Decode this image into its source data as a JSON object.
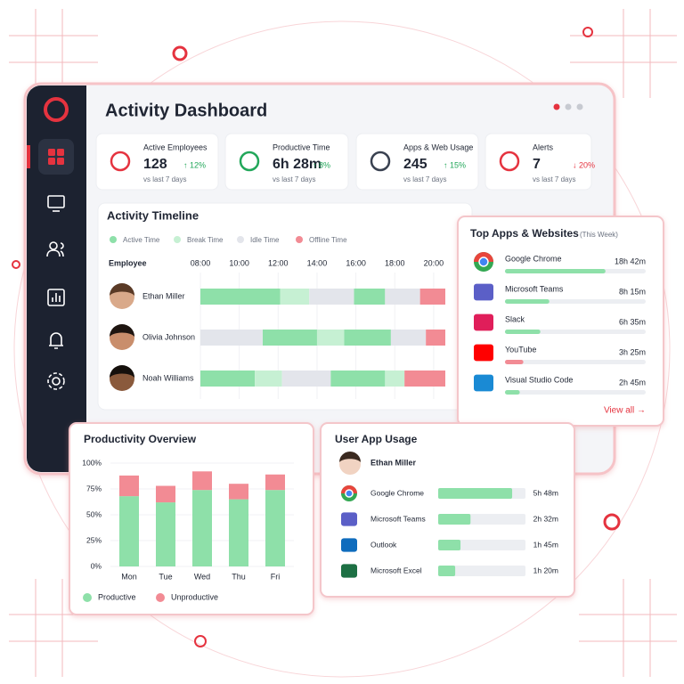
{
  "header": {
    "title": "Activity Dashboard"
  },
  "kpis": [
    {
      "label": "Active Employees",
      "value": "128",
      "change": "↑ 12%",
      "note": "vs last 7 days"
    },
    {
      "label": "Productive Time",
      "value": "6h 28m",
      "change": "↑ 8%",
      "note": "vs last 7 days"
    },
    {
      "label": "Apps & Web Usage",
      "value": "245",
      "change": "↑ 15%",
      "note": "vs last 7 days"
    },
    {
      "label": "Alerts",
      "value": "7",
      "change": "↓ 20%",
      "note": "vs last 7 days"
    }
  ],
  "timeline": {
    "title": "Activity Timeline",
    "column_label": "Employee",
    "xlim": [
      8,
      20.6
    ],
    "xticks": [
      {
        "value": 8,
        "label": "08:00"
      },
      {
        "value": 10,
        "label": "10:00"
      },
      {
        "value": 12,
        "label": "12:00"
      },
      {
        "value": 14,
        "label": "14:00"
      },
      {
        "value": 16,
        "label": "16:00"
      },
      {
        "value": 18,
        "label": "18:00"
      },
      {
        "value": 20,
        "label": "20:00"
      }
    ],
    "employees": [
      "Ethan Miller",
      "Olivia Johnson",
      "Noah Williams"
    ],
    "legend": [
      {
        "name": "Active Time",
        "color": "#8ee0a9",
        "spans": [
          [
            [
              8,
              12.1
            ],
            [
              15.9,
              17.5
            ]
          ],
          [
            [
              11.2,
              14
            ],
            [
              15.4,
              17.8
            ]
          ],
          [
            [
              8,
              10.8
            ],
            [
              14.7,
              17.5
            ]
          ]
        ]
      },
      {
        "name": "Break Time",
        "color": "#c6f0d3",
        "spans": [
          [
            [
              12.1,
              13.6
            ]
          ],
          [
            [
              14,
              15.4
            ]
          ],
          [
            [
              10.8,
              12.2
            ],
            [
              17.5,
              18.5
            ]
          ]
        ]
      },
      {
        "name": "Idle Time",
        "color": "#e3e5eb",
        "spans": [
          [
            [
              13.6,
              15.9
            ],
            [
              17.5,
              19.3
            ]
          ],
          [
            [
              8,
              11.2
            ],
            [
              17.8,
              19.6
            ]
          ],
          [
            [
              12.2,
              14.7
            ]
          ]
        ]
      },
      {
        "name": "Offline Time",
        "color": "#f28b94",
        "spans": [
          [
            [
              19.3,
              20.6
            ]
          ],
          [
            [
              19.6,
              20.6
            ]
          ],
          [
            [
              18.5,
              20.6
            ]
          ]
        ]
      }
    ]
  },
  "top_apps": {
    "title": "Top Apps & Websites",
    "period": "(This Week)",
    "link": "View all →",
    "apps": [
      {
        "name": "Google Chrome",
        "time": {
          "value": 1122,
          "label": "18h 42m"
        }
      },
      {
        "name": "Microsoft Teams",
        "time": {
          "value": 495,
          "label": "8h 15m"
        }
      },
      {
        "name": "Slack",
        "time": {
          "value": 395,
          "label": "6h 35m"
        }
      },
      {
        "name": "YouTube",
        "time": {
          "value": 205,
          "label": "3h 25m"
        }
      },
      {
        "name": "Visual Studio Code",
        "time": {
          "value": 165,
          "label": "2h 45m"
        }
      }
    ]
  },
  "chart_data": {
    "type": "bar",
    "stacked": true,
    "title": "Productivity Overview",
    "categories": [
      "Mon",
      "Tue",
      "Wed",
      "Thu",
      "Fri"
    ],
    "series": [
      {
        "name": "Productive",
        "color": "#8ee0a9",
        "values": [
          68,
          62,
          74,
          65,
          74
        ]
      },
      {
        "name": "Unproductive",
        "color": "#f28b94",
        "values": [
          20,
          16,
          18,
          15,
          15
        ]
      }
    ],
    "ylim": [
      0,
      100
    ],
    "yticks": [
      {
        "value": 0,
        "label": "0%"
      },
      {
        "value": 25,
        "label": "25%"
      },
      {
        "value": 50,
        "label": "50%"
      },
      {
        "value": 75,
        "label": "75%"
      },
      {
        "value": 100,
        "label": "100%"
      }
    ]
  },
  "user_usage": {
    "title": "User App Usage",
    "user": "Ethan Miller",
    "apps": [
      {
        "name": "Google Chrome",
        "time": {
          "value": 348,
          "label": "5h 48m"
        }
      },
      {
        "name": "Microsoft Teams",
        "time": {
          "value": 152,
          "label": "2h 32m"
        }
      },
      {
        "name": "Outlook",
        "time": {
          "value": 105,
          "label": "1h 45m"
        }
      },
      {
        "name": "Microsoft Excel",
        "time": {
          "value": 80,
          "label": "1h 20m"
        }
      }
    ]
  }
}
